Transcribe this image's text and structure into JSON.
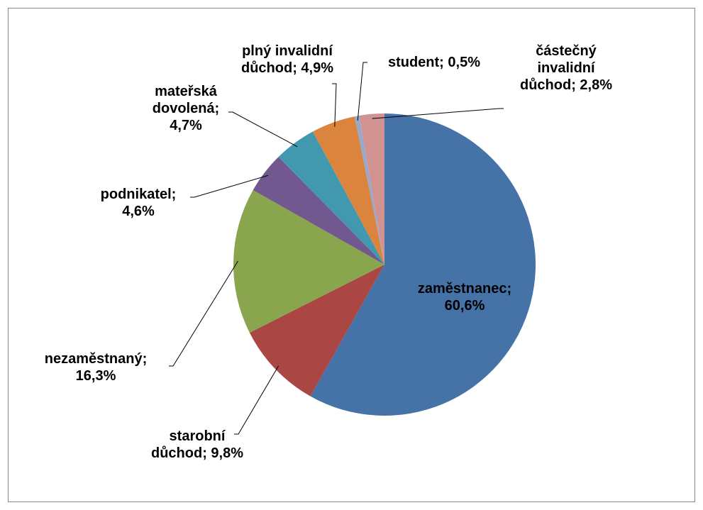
{
  "chart_data": {
    "type": "pie",
    "categories": [
      "zaměstnanec;",
      "starobní důchod;",
      "nezaměstnaný;",
      "podnikatel;",
      "mateřská dovolená;",
      "plný invalidní důchod;",
      "student;",
      "částečný invalidní důchod;"
    ],
    "values": [
      60.6,
      9.8,
      16.3,
      4.6,
      4.7,
      4.9,
      0.5,
      2.8
    ],
    "value_labels": [
      "60,6%",
      "9,8%",
      "16,3%",
      "4,6%",
      "4,7%",
      "4,9%",
      "0,5%",
      "2,8%"
    ],
    "colors": [
      "#4572a7",
      "#aa4643",
      "#89a54e",
      "#71588f",
      "#4198af",
      "#db843d",
      "#93a9cf",
      "#d19392"
    ]
  }
}
